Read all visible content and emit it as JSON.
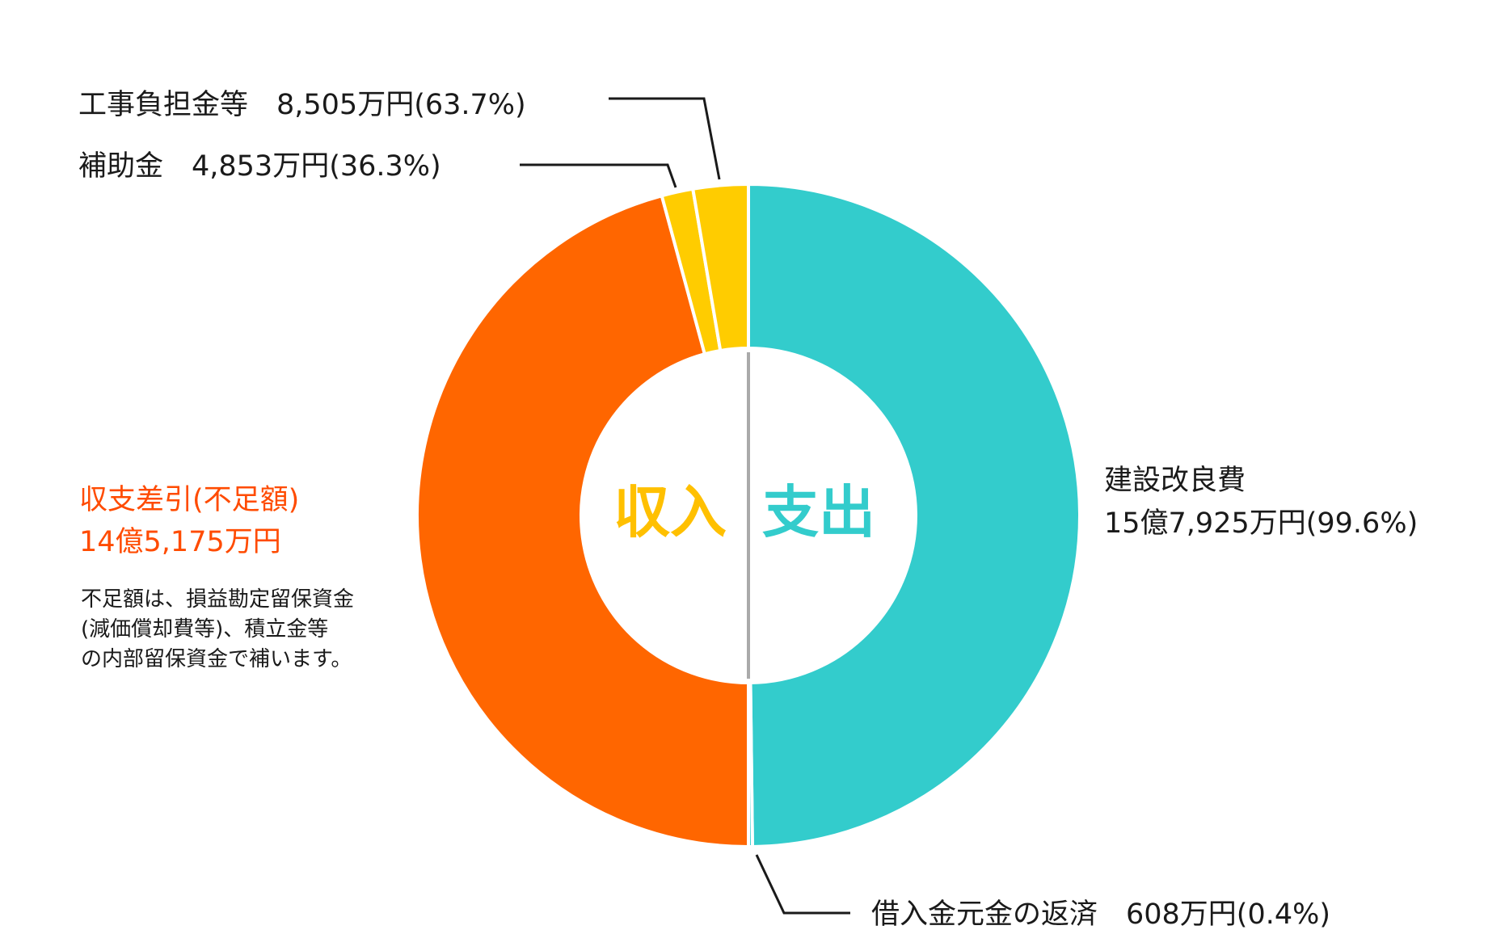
{
  "colors": {
    "income_deficit": "#ff6600",
    "income_small": "#ffcc00",
    "expense_main": "#33cccc",
    "expense_small": "#33cccc",
    "divider": "#aaaaaa",
    "red_text": "#ff4b00",
    "center_income": "#ffc000",
    "center_expense": "#33cccc"
  },
  "chart_data": {
    "type": "pie",
    "style": "donut",
    "halves": [
      {
        "side": "left",
        "name": "収入",
        "slices": [
          {
            "label": "収支差引(不足額)",
            "value": "14億5,175万円"
          },
          {
            "label": "補助金",
            "value": "4,853万円",
            "percent": "36.3%"
          },
          {
            "label": "工事負担金等",
            "value": "8,505万円",
            "percent": "63.7%"
          }
        ]
      },
      {
        "side": "right",
        "name": "支出",
        "slices": [
          {
            "label": "建設改良費",
            "value": "15億7,925万円",
            "percent": "99.6%"
          },
          {
            "label": "借入金元金の返済",
            "value": "608万円",
            "percent": "0.4%"
          }
        ]
      }
    ]
  },
  "labels": {
    "construction_burden": "工事負担金等　8,505万円(63.7%)",
    "subsidy": "補助金　4,853万円(36.3%)",
    "deficit_line1": "収支差引(不足額)",
    "deficit_line2": "14億5,175万円",
    "note_line1": "不足額は、損益勘定留保資金",
    "note_line2": "(減価償却費等)、積立金等",
    "note_line3": "の内部留保資金で補います。",
    "construction_cost_line1": "建設改良費",
    "construction_cost_line2": "15億7,925万円(99.6%)",
    "loan_repayment": "借入金元金の返済　608万円(0.4%)",
    "center_income": "収入",
    "center_expense": "支出"
  }
}
